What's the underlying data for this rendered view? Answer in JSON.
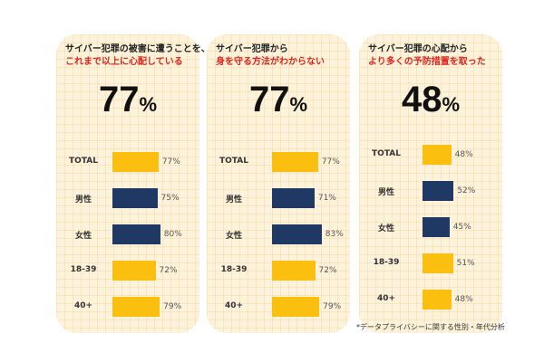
{
  "colors": {
    "total": "#fbbf10",
    "gender": "#1f3864",
    "age": "#fbbf10",
    "accent": "#e0241b"
  },
  "panels": [
    {
      "line1": "サイバー犯罪の被害に遭うことを、",
      "line2": "これまで以上に心配している",
      "headline_value": "77",
      "headline_unit": "%"
    },
    {
      "line1": "サイバー犯罪から",
      "line2": "身を守る方法がわからない",
      "headline_value": "77",
      "headline_unit": "%"
    },
    {
      "line1": "サイバー犯罪の心配から",
      "line2": "より多くの予防措置を取った",
      "headline_value": "48",
      "headline_unit": "%"
    }
  ],
  "footnote": "*データプライバシーに関する性別・年代分析",
  "chart_data": [
    {
      "type": "bar",
      "categories": [
        "TOTAL",
        "男性",
        "女性",
        "18-39",
        "40+"
      ],
      "values": [
        77,
        75,
        80,
        72,
        79
      ],
      "value_labels": [
        "77%",
        "75%",
        "80%",
        "72%",
        "79%"
      ],
      "xlim": [
        0,
        100
      ]
    },
    {
      "type": "bar",
      "categories": [
        "TOTAL",
        "男性",
        "女性",
        "18-39",
        "40+"
      ],
      "values": [
        77,
        71,
        83,
        72,
        79
      ],
      "value_labels": [
        "77%",
        "71%",
        "83%",
        "72%",
        "79%"
      ],
      "xlim": [
        0,
        100
      ]
    },
    {
      "type": "bar",
      "categories": [
        "TOTAL",
        "男性",
        "女性",
        "18-39",
        "40+"
      ],
      "values": [
        48,
        52,
        45,
        51,
        48
      ],
      "value_labels": [
        "48%",
        "52%",
        "45%",
        "51%",
        "48%"
      ],
      "xlim": [
        0,
        100
      ]
    }
  ]
}
